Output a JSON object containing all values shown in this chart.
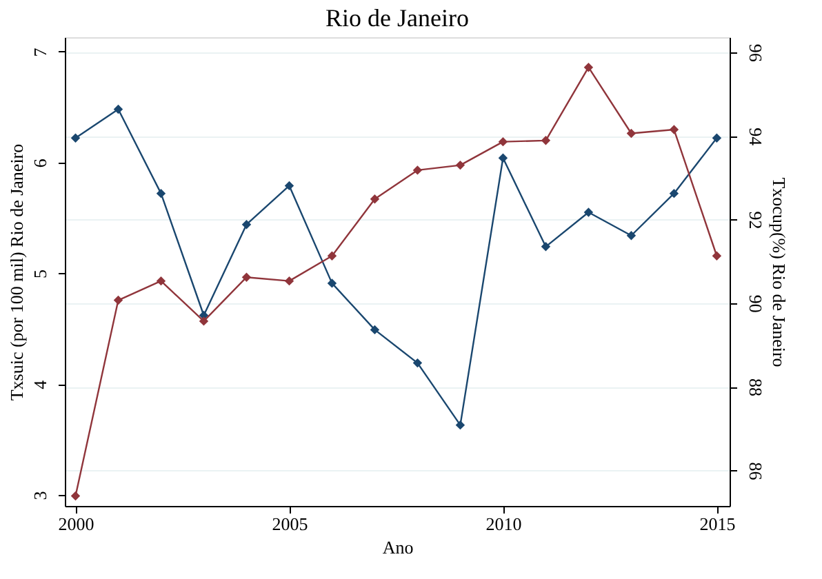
{
  "chart_data": {
    "type": "line",
    "title": "Rio de Janeiro",
    "xlabel": "Ano",
    "ylabel": "Txsuic (por 100 mil) Rio de Janeiro",
    "y2label": "Txocup(%) Rio de Janeiro",
    "x": [
      2000,
      2001,
      2002,
      2003,
      2004,
      2005,
      2006,
      2007,
      2008,
      2009,
      2010,
      2011,
      2012,
      2013,
      2014,
      2015
    ],
    "series": [
      {
        "color": "#1a476f",
        "values": [
          6.22,
          6.48,
          5.72,
          4.62,
          5.44,
          5.79,
          4.91,
          4.49,
          4.19,
          3.63,
          6.04,
          5.24,
          5.55,
          5.34,
          5.72,
          6.22
        ]
      },
      {
        "color": "#90353b",
        "axis": "y2",
        "values": [
          85.39,
          90.07,
          90.53,
          89.57,
          90.62,
          90.53,
          91.13,
          92.49,
          93.18,
          93.3,
          93.86,
          93.89,
          95.64,
          94.06,
          94.15,
          91.13
        ]
      }
    ],
    "xlim": [
      1999.75,
      2015.3
    ],
    "xticks": [
      2000,
      2005,
      2010,
      2015
    ],
    "ylim": [
      2.9,
      7.13
    ],
    "yticks": [
      3,
      4,
      5,
      6,
      7
    ],
    "y2lim": [
      85.15,
      96.36
    ],
    "y2ticks": [
      86,
      88,
      90,
      92,
      94,
      96
    ],
    "grid": "y2",
    "marker": "diamond",
    "line_style": "solid"
  }
}
